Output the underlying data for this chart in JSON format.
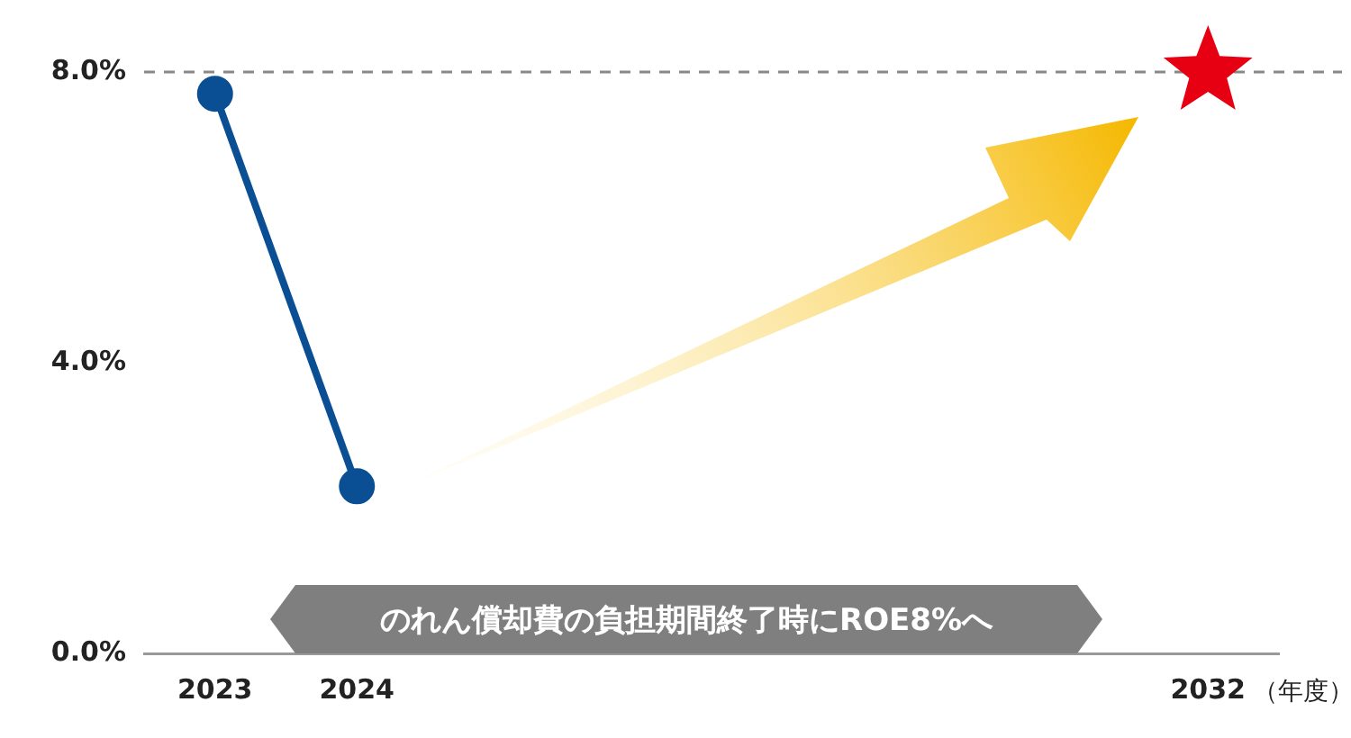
{
  "chart_data": {
    "type": "line",
    "categories": [
      "2023",
      "2024",
      null,
      null,
      null,
      null,
      null,
      "2032"
    ],
    "xlabel": "（年度）",
    "series": [
      {
        "color": "#0a4f94",
        "marker": "circle",
        "values": [
          7.7,
          2.3,
          null,
          null,
          null,
          null,
          null,
          null
        ]
      },
      {
        "type": "scatter",
        "color": "#e60012",
        "marker": "star",
        "values": [
          null,
          null,
          null,
          null,
          null,
          null,
          null,
          8
        ]
      }
    ],
    "ylim": [
      0,
      8
    ],
    "yticks": [
      {
        "value": 0,
        "label": "0.0%"
      },
      {
        "value": 4,
        "label": "4.0%"
      },
      {
        "value": 8,
        "label": "8.0%"
      }
    ],
    "grid": false,
    "legend": false,
    "ref_lines": [
      {
        "axis": "y",
        "value": 8,
        "color": "#888888",
        "line_style": "dashed"
      }
    ],
    "annotations": [
      "のれん償却費の負担期間終了時にROE8%へ"
    ]
  }
}
